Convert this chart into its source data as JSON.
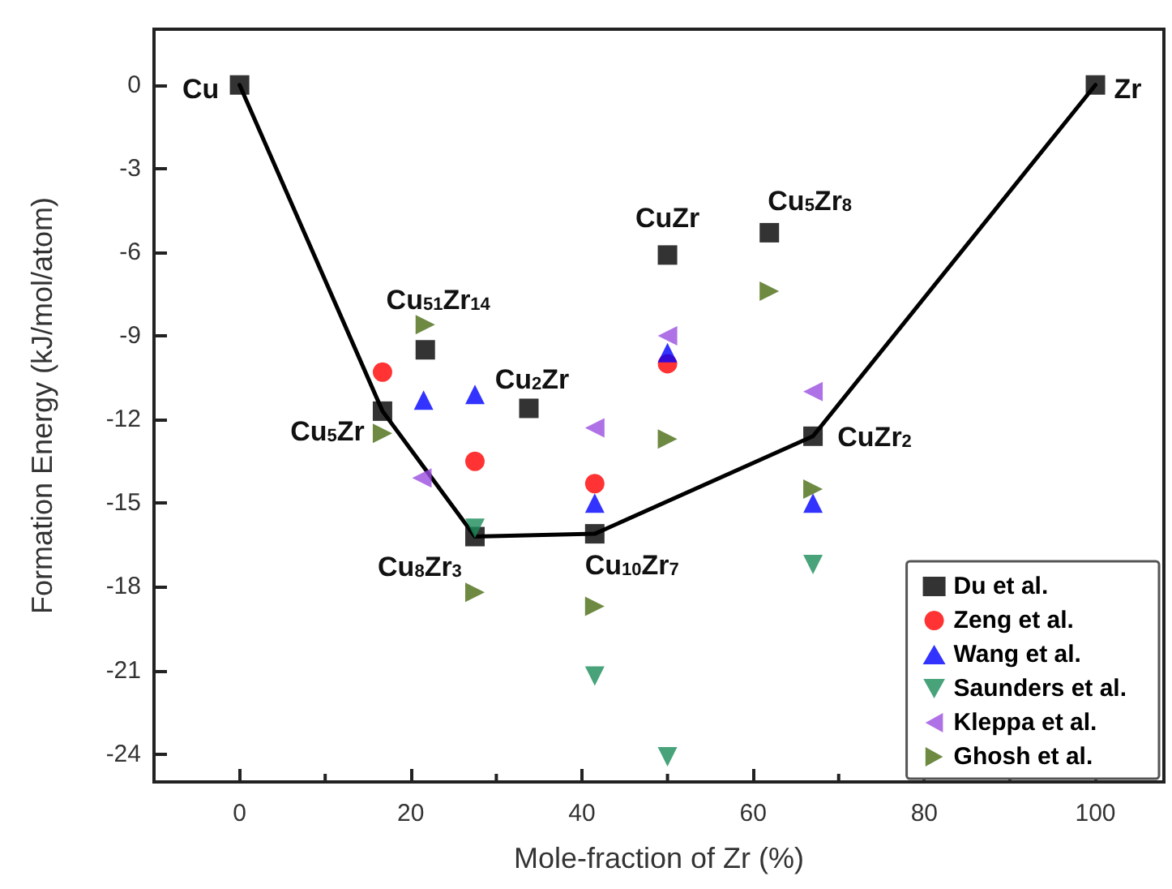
{
  "chart_data": {
    "type": "scatter",
    "xlabel": "Mole-fraction of Zr (%)",
    "ylabel": "Formation Energy (kJ/mol/atom)",
    "xlim": [
      -10,
      108
    ],
    "ylim": [
      -25,
      2
    ],
    "xticks": [
      0,
      20,
      40,
      60,
      80,
      100
    ],
    "yticks": [
      0,
      -3,
      -6,
      -9,
      -12,
      -15,
      -18,
      -21,
      -24
    ],
    "grid": false,
    "legend": "bottom right",
    "series": [
      {
        "type": "line",
        "color": "#000000",
        "marker": "none",
        "line_style": "solid",
        "x": [
          0,
          16.7,
          27.5,
          41.5,
          67,
          100
        ],
        "values": [
          0,
          -11.7,
          -16.2,
          -16.1,
          -12.6,
          0
        ]
      },
      {
        "name": "Du et al.",
        "color": "#000000",
        "marker": "square",
        "x": [
          0,
          16.7,
          21.7,
          27.5,
          33.8,
          41.5,
          50,
          61.9,
          67,
          100
        ],
        "values": [
          0,
          -11.7,
          -9.5,
          -16.2,
          -11.6,
          -16.1,
          -6.1,
          -5.3,
          -12.6,
          0
        ]
      },
      {
        "name": "Zeng et al.",
        "color": "#ff0000",
        "marker": "circle",
        "x": [
          16.7,
          27.5,
          41.5,
          50
        ],
        "values": [
          -10.3,
          -13.5,
          -14.3,
          -10
        ]
      },
      {
        "name": "Wang et al.",
        "color": "#0000ff",
        "marker": "triangle",
        "x": [
          21.5,
          27.5,
          41.5,
          50,
          67
        ],
        "values": [
          -11.3,
          -11.1,
          -15,
          -9.6,
          -15
        ]
      },
      {
        "name": "Saunders et al.",
        "color": "#1a8c5a",
        "marker": "triangle-down",
        "x": [
          27.5,
          41.5,
          50,
          67
        ],
        "values": [
          -15.9,
          -21.2,
          -24.1,
          -17.2
        ]
      },
      {
        "name": "Kleppa et al.",
        "color": "#9b4fe0",
        "marker": "triangle-left",
        "x": [
          21.3,
          41.5,
          50,
          67
        ],
        "values": [
          -14.1,
          -12.3,
          -9,
          -11
        ]
      },
      {
        "name": "Ghosh et al.",
        "color": "#4a6b12",
        "marker": "triangle-right",
        "x": [
          16.7,
          21.7,
          27.5,
          41.5,
          50,
          61.9,
          67
        ],
        "values": [
          -12.5,
          -8.6,
          -18.2,
          -18.7,
          -12.7,
          -7.4,
          -14.5
        ]
      }
    ],
    "annotations": [
      {
        "text": "Cu",
        "x": 0,
        "y": 0
      },
      {
        "text": "Zr",
        "x": 100,
        "y": 0
      },
      {
        "text": "Cu$_{51}$Zr$_{14}$",
        "x": 21.7,
        "y": -9.5
      },
      {
        "text": "Cu$_{2}$Zr",
        "x": 33.8,
        "y": -11.6
      },
      {
        "text": "Cu$_{5}$Zr",
        "x": 16.7,
        "y": -11.7
      },
      {
        "text": "Cu$_{8}$Zr$_{3}$",
        "x": 27.5,
        "y": -16.2
      },
      {
        "text": "Cu$_{10}$Zr$_{7}$",
        "x": 41.5,
        "y": -16.1
      },
      {
        "text": "CuZr",
        "x": 50,
        "y": -6.1
      },
      {
        "text": "Cu$_{5}$Zr$_{8}$",
        "x": 61.9,
        "y": -5.3
      },
      {
        "text": "CuZr$_{2}$",
        "x": 67,
        "y": -12.6
      }
    ]
  }
}
